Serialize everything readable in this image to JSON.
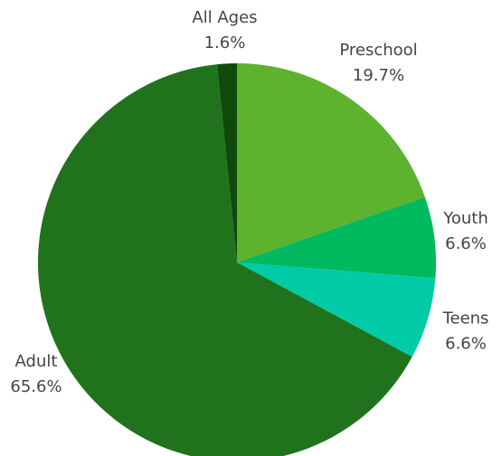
{
  "chart_data": {
    "type": "pie",
    "categories": [
      "Preschool",
      "Youth",
      "Teens",
      "Adult",
      "All Ages"
    ],
    "values": [
      19.7,
      6.6,
      6.6,
      65.6,
      1.6
    ],
    "value_labels": [
      "19.7%",
      "6.6%",
      "6.6%",
      "65.6%",
      "1.6%"
    ],
    "colors": [
      "#5db22e",
      "#00b85e",
      "#00cba6",
      "#20731c",
      "#0f4a0c"
    ]
  }
}
